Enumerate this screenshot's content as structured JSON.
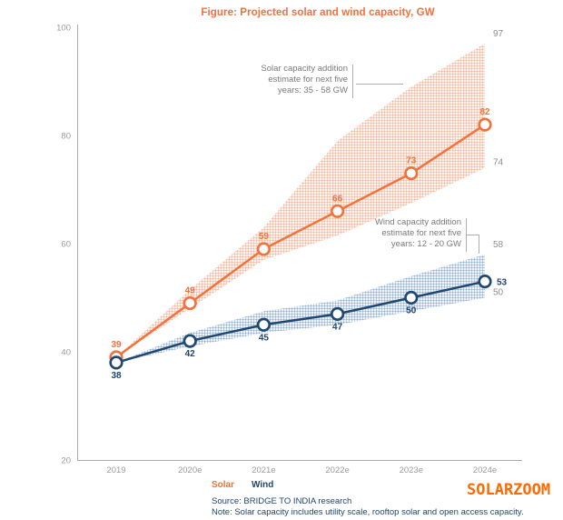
{
  "title": "Figure: Projected solar and wind capacity, GW",
  "watermark": "SOLARZOOM",
  "legend": [
    {
      "label": "Solar",
      "color": "#F4703B"
    },
    {
      "label": "Wind",
      "color": "#204672"
    }
  ],
  "footer": {
    "source": "Source: BRIDGE TO INDIA research",
    "note": "Note: Solar capacity includes utility scale, rooftop solar and open access capacity."
  },
  "annotations": {
    "solar": "Solar capacity addition\nestimate for next five\nyears: 35 - 58 GW",
    "wind": "Wind capacity addition\nestimate for next five\nyears: 12 - 20 GW"
  },
  "chart_data": {
    "type": "line",
    "categories": [
      "2019",
      "2020e",
      "2021e",
      "2022e",
      "2023e",
      "2024e"
    ],
    "yticks": [
      20,
      40,
      60,
      80,
      100
    ],
    "ylim": [
      20,
      100
    ],
    "grid": false,
    "legend_position": "bottom",
    "series": [
      {
        "name": "Solar",
        "color": "#F3713C",
        "values": [
          39,
          49,
          59,
          66,
          73,
          82
        ],
        "band_upper": [
          39,
          51.5,
          63,
          79,
          89,
          97
        ],
        "band_lower": [
          39,
          48,
          57,
          61.5,
          67.5,
          74
        ],
        "band_end_labels": {
          "upper": "97",
          "lower": "74"
        },
        "label_pos": "above",
        "last_label_pos": "above"
      },
      {
        "name": "Wind",
        "color": "#204672",
        "values": [
          38,
          42,
          45,
          47,
          50,
          53
        ],
        "band_upper": [
          38,
          43.5,
          47.5,
          49.5,
          54,
          58
        ],
        "band_lower": [
          38,
          41,
          43.5,
          45,
          47.5,
          50
        ],
        "band_end_labels": {
          "upper": "58",
          "lower": "50"
        },
        "label_pos": "below",
        "last_label_pos": "right"
      }
    ],
    "colors": {
      "axis": "#ABABAB",
      "tick_text": "#9B9B9B",
      "band_label_text": "#8E8E8E",
      "bracket": "#ADADAD"
    }
  }
}
